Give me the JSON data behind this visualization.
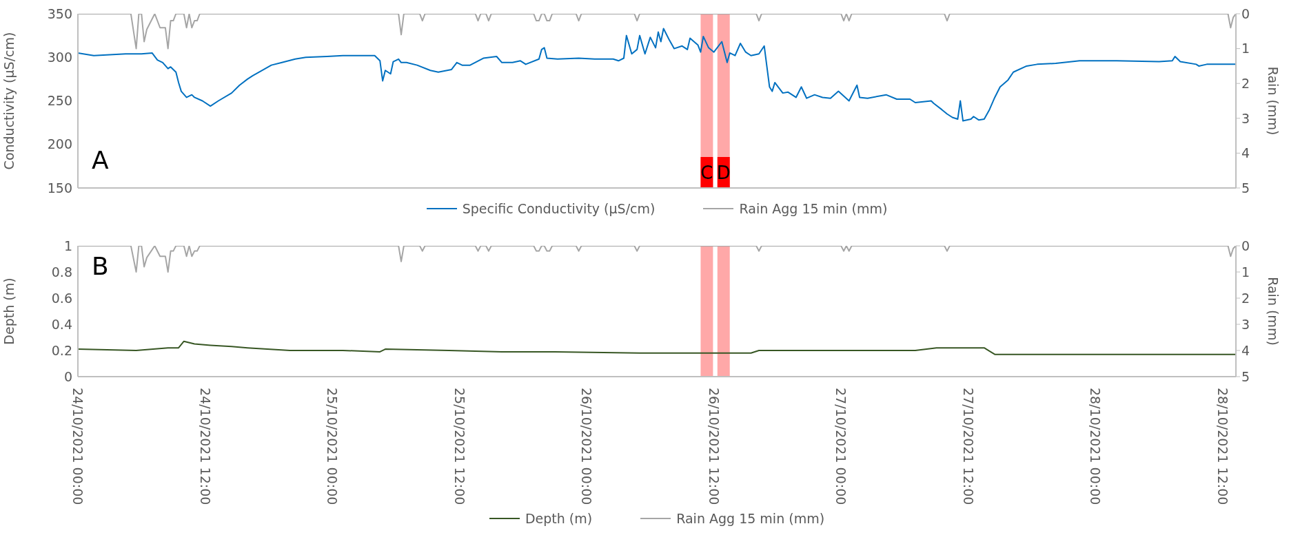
{
  "chart_data": [
    {
      "type": "line",
      "ylabel": "Conductivity (µS/cm)",
      "y2label": "Rain (mm)",
      "xlim": [
        "2021-10-24T00:00",
        "2021-10-28T13:15"
      ],
      "ylim": [
        150,
        350
      ],
      "yticks": [
        150,
        200,
        250,
        300,
        350
      ],
      "y2lim": [
        5,
        0
      ],
      "y2ticks": [
        0,
        1,
        2,
        3,
        4,
        5
      ],
      "tick_labels": "y",
      "legend": "bottom",
      "annotations": [
        "A"
      ],
      "bands": [
        {
          "axis": "x",
          "from": "2021-10-26T10:45",
          "to": "2021-10-26T11:55",
          "label": "C",
          "color": "#ff9999"
        },
        {
          "axis": "x",
          "from": "2021-10-26T12:20",
          "to": "2021-10-26T13:30",
          "label": "D",
          "color": "#ff9999"
        }
      ],
      "series": [
        {
          "name": "Specific Conductivity (µS/cm)",
          "color": "#0070c0",
          "x": [
            "2021-10-24T00:00",
            "2021-10-24T01:30",
            "2021-10-24T04:30",
            "2021-10-24T06:00",
            "2021-10-24T07:00",
            "2021-10-24T07:30",
            "2021-10-24T08:00",
            "2021-10-24T08:30",
            "2021-10-24T08:45",
            "2021-10-24T09:15",
            "2021-10-24T09:30",
            "2021-10-24T09:45",
            "2021-10-24T10:15",
            "2021-10-24T10:45",
            "2021-10-24T11:00",
            "2021-10-24T11:45",
            "2021-10-24T12:30",
            "2021-10-24T13:15",
            "2021-10-24T14:30",
            "2021-10-24T15:15",
            "2021-10-24T16:00",
            "2021-10-24T16:30",
            "2021-10-24T17:15",
            "2021-10-24T18:15",
            "2021-10-24T19:15",
            "2021-10-24T20:30",
            "2021-10-24T21:30",
            "2021-10-24T23:30",
            "2021-10-25T01:00",
            "2021-10-25T04:00",
            "2021-10-25T04:30",
            "2021-10-25T04:45",
            "2021-10-25T05:00",
            "2021-10-25T05:30",
            "2021-10-25T05:45",
            "2021-10-25T06:15",
            "2021-10-25T06:30",
            "2021-10-25T07:00",
            "2021-10-25T08:00",
            "2021-10-25T09:15",
            "2021-10-25T10:00",
            "2021-10-25T11:15",
            "2021-10-25T11:45",
            "2021-10-25T12:15",
            "2021-10-25T13:00",
            "2021-10-25T14:15",
            "2021-10-25T15:30",
            "2021-10-25T16:00",
            "2021-10-25T17:00",
            "2021-10-25T17:45",
            "2021-10-25T18:15",
            "2021-10-25T19:30",
            "2021-10-25T19:45",
            "2021-10-25T20:00",
            "2021-10-25T20:15",
            "2021-10-25T21:15",
            "2021-10-25T23:15",
            "2021-10-26T00:45",
            "2021-10-26T02:30",
            "2021-10-26T03:00",
            "2021-10-26T03:30",
            "2021-10-26T03:45",
            "2021-10-26T04:15",
            "2021-10-26T04:45",
            "2021-10-26T05:00",
            "2021-10-26T05:30",
            "2021-10-26T06:00",
            "2021-10-26T06:30",
            "2021-10-26T06:45",
            "2021-10-26T07:00",
            "2021-10-26T07:15",
            "2021-10-26T07:45",
            "2021-10-26T08:15",
            "2021-10-26T09:00",
            "2021-10-26T09:30",
            "2021-10-26T09:45",
            "2021-10-26T10:30",
            "2021-10-26T10:45",
            "2021-10-26T11:00",
            "2021-10-26T11:30",
            "2021-10-26T12:00",
            "2021-10-26T12:45",
            "2021-10-26T13:15",
            "2021-10-26T13:30",
            "2021-10-26T14:00",
            "2021-10-26T14:30",
            "2021-10-26T15:00",
            "2021-10-26T15:30",
            "2021-10-26T16:15",
            "2021-10-26T16:45",
            "2021-10-26T17:15",
            "2021-10-26T17:30",
            "2021-10-26T17:45",
            "2021-10-26T18:30",
            "2021-10-26T19:00",
            "2021-10-26T19:45",
            "2021-10-26T20:15",
            "2021-10-26T20:45",
            "2021-10-26T21:30",
            "2021-10-26T22:15",
            "2021-10-26T23:00",
            "2021-10-26T23:45",
            "2021-10-27T00:45",
            "2021-10-27T01:30",
            "2021-10-27T01:45",
            "2021-10-27T02:30",
            "2021-10-27T04:15",
            "2021-10-27T05:15",
            "2021-10-27T06:30",
            "2021-10-27T07:00",
            "2021-10-27T08:30",
            "2021-10-27T08:45",
            "2021-10-27T09:30",
            "2021-10-27T10:00",
            "2021-10-27T10:30",
            "2021-10-27T11:00",
            "2021-10-27T11:15",
            "2021-10-27T11:30",
            "2021-10-27T12:15",
            "2021-10-27T12:30",
            "2021-10-27T13:00",
            "2021-10-27T13:30",
            "2021-10-27T14:00",
            "2021-10-27T14:30",
            "2021-10-27T15:00",
            "2021-10-27T15:45",
            "2021-10-27T16:15",
            "2021-10-27T17:30",
            "2021-10-27T18:30",
            "2021-10-27T20:15",
            "2021-10-27T22:30",
            "2021-10-28T02:00",
            "2021-10-28T06:00",
            "2021-10-28T07:15",
            "2021-10-28T07:30",
            "2021-10-28T08:00",
            "2021-10-28T09:30",
            "2021-10-28T09:45",
            "2021-10-28T10:30",
            "2021-10-28T13:15"
          ],
          "values": [
            305,
            302,
            304,
            304,
            305,
            297,
            294,
            287,
            289,
            283,
            271,
            261,
            254,
            257,
            254,
            250,
            244,
            250,
            259,
            268,
            275,
            279,
            284,
            291,
            294,
            298,
            300,
            301,
            302,
            302,
            296,
            273,
            285,
            281,
            295,
            298,
            294,
            294,
            291,
            285,
            283,
            286,
            294,
            291,
            291,
            299,
            301,
            294,
            294,
            296,
            292,
            298,
            309,
            311,
            299,
            298,
            299,
            298,
            298,
            296,
            299,
            325,
            304,
            309,
            325,
            304,
            323,
            311,
            329,
            318,
            333,
            321,
            310,
            313,
            309,
            322,
            314,
            306,
            324,
            311,
            306,
            318,
            294,
            305,
            302,
            316,
            306,
            302,
            304,
            313,
            266,
            261,
            271,
            259,
            260,
            254,
            266,
            253,
            257,
            254,
            253,
            261,
            250,
            268,
            254,
            253,
            257,
            252,
            252,
            248,
            250,
            247,
            240,
            235,
            231,
            229,
            250,
            227,
            229,
            232,
            228,
            229,
            240,
            254,
            266,
            274,
            283,
            290,
            292,
            293,
            296,
            296,
            295,
            296,
            301,
            295,
            292,
            290,
            292,
            292
          ]
        },
        {
          "name": "Rain Agg 15 min (mm)",
          "color": "#a5a5a5",
          "axis": "y2",
          "x": [
            "2021-10-24T00:00",
            "2021-10-24T05:00",
            "2021-10-24T05:30",
            "2021-10-24T05:45",
            "2021-10-24T06:00",
            "2021-10-24T06:15",
            "2021-10-24T06:30",
            "2021-10-24T07:15",
            "2021-10-24T07:45",
            "2021-10-24T08:15",
            "2021-10-24T08:30",
            "2021-10-24T08:45",
            "2021-10-24T09:00",
            "2021-10-24T09:15",
            "2021-10-24T10:00",
            "2021-10-24T10:15",
            "2021-10-24T10:30",
            "2021-10-24T10:45",
            "2021-10-24T11:00",
            "2021-10-24T11:15",
            "2021-10-24T11:30",
            "2021-10-25T06:15",
            "2021-10-25T06:30",
            "2021-10-25T06:45",
            "2021-10-25T08:15",
            "2021-10-25T08:30",
            "2021-10-25T08:45",
            "2021-10-25T13:30",
            "2021-10-25T13:45",
            "2021-10-25T14:00",
            "2021-10-25T14:30",
            "2021-10-25T14:45",
            "2021-10-25T15:00",
            "2021-10-25T19:00",
            "2021-10-25T19:15",
            "2021-10-25T19:30",
            "2021-10-25T19:45",
            "2021-10-25T20:00",
            "2021-10-25T20:15",
            "2021-10-25T20:30",
            "2021-10-25T20:45",
            "2021-10-25T23:00",
            "2021-10-25T23:15",
            "2021-10-25T23:30",
            "2021-10-26T04:30",
            "2021-10-26T04:45",
            "2021-10-26T05:00",
            "2021-10-26T16:00",
            "2021-10-26T16:15",
            "2021-10-26T16:30",
            "2021-10-27T00:00",
            "2021-10-27T00:15",
            "2021-10-27T00:30",
            "2021-10-27T00:45",
            "2021-10-27T01:00",
            "2021-10-27T09:45",
            "2021-10-27T10:00",
            "2021-10-27T10:15",
            "2021-10-28T12:30",
            "2021-10-28T12:45",
            "2021-10-28T13:00",
            "2021-10-28T13:15"
          ],
          "values": [
            0,
            0,
            1.0,
            0,
            0,
            0.8,
            0.45,
            0,
            0.4,
            0.4,
            1.0,
            0.2,
            0.2,
            0,
            0,
            0.4,
            0,
            0.4,
            0.2,
            0.2,
            0,
            0,
            0.6,
            0,
            0,
            0.2,
            0,
            0,
            0.2,
            0,
            0,
            0.2,
            0,
            0,
            0.2,
            0.2,
            0,
            0,
            0.2,
            0.2,
            0,
            0,
            0.2,
            0,
            0,
            0.2,
            0,
            0,
            0.2,
            0,
            0,
            0.2,
            0,
            0.2,
            0,
            0,
            0.2,
            0,
            0,
            0.4,
            0.1,
            0
          ]
        }
      ]
    },
    {
      "type": "line",
      "ylabel": "Depth (m)",
      "y2label": "Rain (mm)",
      "xlim": [
        "2021-10-24T00:00",
        "2021-10-28T13:15"
      ],
      "xticks": [
        {
          "value": "2021-10-24T00:00",
          "label": "24/10/2021 00:00"
        },
        {
          "value": "2021-10-24T12:00",
          "label": "24/10/2021 12:00"
        },
        {
          "value": "2021-10-25T00:00",
          "label": "25/10/2021 00:00"
        },
        {
          "value": "2021-10-25T12:00",
          "label": "25/10/2021 12:00"
        },
        {
          "value": "2021-10-26T00:00",
          "label": "26/10/2021 00:00"
        },
        {
          "value": "2021-10-26T12:00",
          "label": "26/10/2021 12:00"
        },
        {
          "value": "2021-10-27T00:00",
          "label": "27/10/2021 00:00"
        },
        {
          "value": "2021-10-27T12:00",
          "label": "27/10/2021 12:00"
        },
        {
          "value": "2021-10-28T00:00",
          "label": "28/10/2021 00:00"
        },
        {
          "value": "2021-10-28T12:00",
          "label": "28/10/2021 12:00"
        }
      ],
      "ylim": [
        0,
        1
      ],
      "yticks": [
        0,
        0.2,
        0.4,
        0.6,
        0.8,
        1
      ],
      "y2lim": [
        5,
        0
      ],
      "y2ticks": [
        0,
        1,
        2,
        3,
        4,
        5
      ],
      "legend": "bottom",
      "annotations": [
        "B"
      ],
      "bands": [
        {
          "axis": "x",
          "from": "2021-10-26T10:45",
          "to": "2021-10-26T11:55",
          "color": "#ff9999"
        },
        {
          "axis": "x",
          "from": "2021-10-26T12:20",
          "to": "2021-10-26T13:30",
          "color": "#ff9999"
        }
      ],
      "series": [
        {
          "name": "Depth (m)",
          "color": "#375623",
          "x": [
            "2021-10-24T00:00",
            "2021-10-24T05:30",
            "2021-10-24T08:30",
            "2021-10-24T09:30",
            "2021-10-24T10:00",
            "2021-10-24T11:00",
            "2021-10-24T12:30",
            "2021-10-24T14:30",
            "2021-10-24T16:00",
            "2021-10-24T20:00",
            "2021-10-25T01:00",
            "2021-10-25T04:30",
            "2021-10-25T05:00",
            "2021-10-25T11:00",
            "2021-10-25T16:00",
            "2021-10-25T21:00",
            "2021-10-26T05:00",
            "2021-10-26T15:30",
            "2021-10-26T16:15",
            "2021-10-26T22:00",
            "2021-10-27T03:00",
            "2021-10-27T07:00",
            "2021-10-27T09:00",
            "2021-10-27T10:00",
            "2021-10-27T13:30",
            "2021-10-27T14:30",
            "2021-10-27T16:00",
            "2021-10-27T23:00",
            "2021-10-28T13:15"
          ],
          "values": [
            0.21,
            0.2,
            0.22,
            0.22,
            0.27,
            0.25,
            0.24,
            0.23,
            0.22,
            0.2,
            0.2,
            0.19,
            0.21,
            0.2,
            0.19,
            0.19,
            0.18,
            0.18,
            0.2,
            0.2,
            0.2,
            0.2,
            0.22,
            0.22,
            0.22,
            0.17,
            0.17,
            0.17,
            0.17
          ]
        },
        {
          "name": "Rain Agg 15 min (mm)",
          "color": "#a5a5a5",
          "axis": "y2",
          "x": [
            "2021-10-24T00:00",
            "2021-10-24T05:00",
            "2021-10-24T05:30",
            "2021-10-24T05:45",
            "2021-10-24T06:00",
            "2021-10-24T06:15",
            "2021-10-24T06:30",
            "2021-10-24T07:15",
            "2021-10-24T07:45",
            "2021-10-24T08:15",
            "2021-10-24T08:30",
            "2021-10-24T08:45",
            "2021-10-24T09:00",
            "2021-10-24T09:15",
            "2021-10-24T10:00",
            "2021-10-24T10:15",
            "2021-10-24T10:30",
            "2021-10-24T10:45",
            "2021-10-24T11:00",
            "2021-10-24T11:15",
            "2021-10-24T11:30",
            "2021-10-25T06:15",
            "2021-10-25T06:30",
            "2021-10-25T06:45",
            "2021-10-25T08:15",
            "2021-10-25T08:30",
            "2021-10-25T08:45",
            "2021-10-25T13:30",
            "2021-10-25T13:45",
            "2021-10-25T14:00",
            "2021-10-25T14:30",
            "2021-10-25T14:45",
            "2021-10-25T15:00",
            "2021-10-25T19:00",
            "2021-10-25T19:15",
            "2021-10-25T19:30",
            "2021-10-25T19:45",
            "2021-10-25T20:00",
            "2021-10-25T20:15",
            "2021-10-25T20:30",
            "2021-10-25T20:45",
            "2021-10-25T23:00",
            "2021-10-25T23:15",
            "2021-10-25T23:30",
            "2021-10-26T04:30",
            "2021-10-26T04:45",
            "2021-10-26T05:00",
            "2021-10-26T16:00",
            "2021-10-26T16:15",
            "2021-10-26T16:30",
            "2021-10-27T00:00",
            "2021-10-27T00:15",
            "2021-10-27T00:30",
            "2021-10-27T00:45",
            "2021-10-27T01:00",
            "2021-10-27T09:45",
            "2021-10-27T10:00",
            "2021-10-27T10:15",
            "2021-10-28T12:30",
            "2021-10-28T12:45",
            "2021-10-28T13:00",
            "2021-10-28T13:15"
          ],
          "values": [
            0,
            0,
            1.0,
            0,
            0,
            0.8,
            0.45,
            0,
            0.4,
            0.4,
            1.0,
            0.2,
            0.2,
            0,
            0,
            0.4,
            0,
            0.4,
            0.2,
            0.2,
            0,
            0,
            0.6,
            0,
            0,
            0.2,
            0,
            0,
            0.2,
            0,
            0,
            0.2,
            0,
            0,
            0.2,
            0.2,
            0,
            0,
            0.2,
            0.2,
            0,
            0,
            0.2,
            0,
            0,
            0.2,
            0,
            0,
            0.2,
            0,
            0,
            0.2,
            0,
            0.2,
            0,
            0,
            0.2,
            0,
            0,
            0.4,
            0.1,
            0
          ]
        }
      ]
    }
  ]
}
